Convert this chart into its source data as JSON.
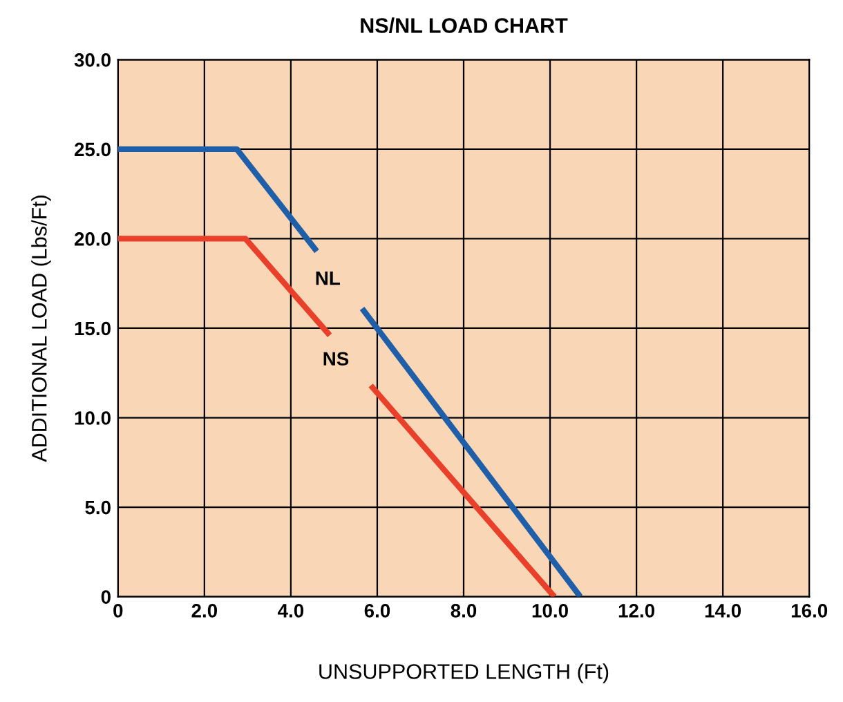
{
  "chart_data": {
    "type": "line",
    "title": "NS/NL LOAD CHART",
    "xlabel": "UNSUPPORTED LENGTH (Ft)",
    "ylabel": "ADDITIONAL LOAD (Lbs/Ft)",
    "xlim": [
      0,
      16
    ],
    "ylim": [
      0,
      30
    ],
    "xticks": [
      0,
      {
        "value": 2,
        "label": "2.0"
      },
      {
        "value": 4,
        "label": "4.0"
      },
      {
        "value": 6,
        "label": "6.0"
      },
      {
        "value": 8,
        "label": "8.0"
      },
      {
        "value": 10,
        "label": "10.0"
      },
      {
        "value": 12,
        "label": "12.0"
      },
      {
        "value": 14,
        "label": "14.0"
      },
      {
        "value": 16,
        "label": "16.0"
      }
    ],
    "yticks": [
      0,
      {
        "value": 5,
        "label": "5.0"
      },
      {
        "value": 10,
        "label": "10.0"
      },
      {
        "value": 15,
        "label": "15.0"
      },
      {
        "value": 20,
        "label": "20.0"
      },
      {
        "value": 25,
        "label": "25.0"
      },
      {
        "value": 30,
        "label": "30.0"
      }
    ],
    "grid": true,
    "line_style": "solid",
    "marker": "none",
    "series": [
      {
        "name": "NL",
        "color": "#1f5ea8",
        "x": [
          0,
          2.75,
          4.6,
          5.15,
          5.65,
          10.7
        ],
        "values": [
          25,
          25,
          19.3,
          null,
          16.1,
          0
        ]
      },
      {
        "name": "NS",
        "color": "#e8402a",
        "x": [
          0,
          2.95,
          4.9,
          5.35,
          5.85,
          10.1
        ],
        "values": [
          20,
          20,
          14.6,
          null,
          11.8,
          0
        ]
      }
    ]
  }
}
